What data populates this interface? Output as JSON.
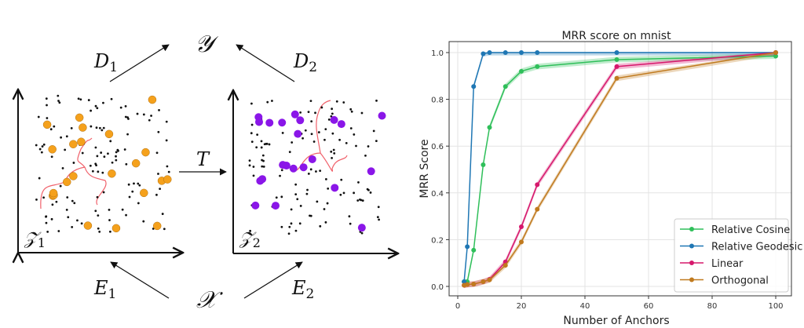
{
  "diagram": {
    "labels": {
      "y_space": "𝒴",
      "x_space": "𝒳",
      "d1": "D",
      "d1_sub": "1",
      "d2": "D",
      "d2_sub": "2",
      "e1": "E",
      "e1_sub": "1",
      "e2": "E",
      "e2_sub": "2",
      "t": "T",
      "z1": "𝒵",
      "z1_sub": "1",
      "z2": "𝒵",
      "z2_sub": "2"
    },
    "colors": {
      "anchor_left": "#f5a11c",
      "anchor_right": "#8a16e8",
      "path": "#f0606a"
    }
  },
  "chart_data": {
    "type": "line",
    "title": "MRR score on mnist",
    "xlabel": "Number of Anchors",
    "ylabel": "MRR Score",
    "xlim": [
      -4,
      103
    ],
    "ylim": [
      -0.05,
      1.05
    ],
    "xticks": [
      0,
      20,
      40,
      60,
      80,
      100
    ],
    "yticks": [
      0.0,
      0.2,
      0.4,
      0.6,
      0.8,
      1.0
    ],
    "ytick_labels": [
      "0.0",
      "0.2",
      "0.4",
      "0.6",
      "0.8",
      "1.0"
    ],
    "grid": true,
    "legend_position": "bottom-right",
    "x": [
      2,
      3,
      5,
      8,
      10,
      15,
      20,
      25,
      50,
      100
    ],
    "series": [
      {
        "name": "Relative Cosine",
        "color": "#2fbf5a",
        "values": [
          0.02,
          0.02,
          0.155,
          0.52,
          0.68,
          0.855,
          0.92,
          0.94,
          0.97,
          0.985
        ]
      },
      {
        "name": "Relative Geodesic",
        "color": "#1f77b4",
        "values": [
          0.02,
          0.17,
          0.855,
          0.995,
          1.0,
          1.0,
          1.0,
          1.0,
          1.0,
          1.0
        ]
      },
      {
        "name": "Linear",
        "color": "#d6186c",
        "values": [
          0.005,
          0.008,
          0.01,
          0.02,
          0.03,
          0.105,
          0.255,
          0.435,
          0.94,
          1.0
        ]
      },
      {
        "name": "Orthogonal",
        "color": "#c07a1e",
        "values": [
          0.005,
          0.008,
          0.01,
          0.02,
          0.028,
          0.09,
          0.19,
          0.33,
          0.89,
          1.0
        ]
      }
    ]
  }
}
